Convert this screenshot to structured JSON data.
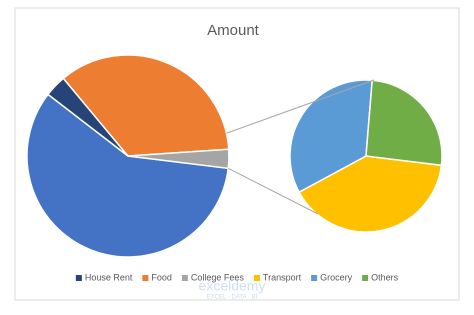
{
  "chart_data": {
    "type": "pie",
    "title": "Amount",
    "categories": [
      "House Rent",
      "Food",
      "College Fees",
      "Transport",
      "Grocery",
      "Others"
    ],
    "values": [
      3.5,
      35,
      3,
      23.5,
      20,
      15
    ],
    "colors": [
      "#264478",
      "#ED7D31",
      "#A5A5A5",
      "#FFC000",
      "#5B9BD5",
      "#70AD47"
    ],
    "other_color": "#4472C4",
    "second_plot_count": 3,
    "legend": "bottom"
  },
  "watermark": {
    "name": "exceldemy",
    "tagline": "EXCEL · DATA · BI"
  }
}
